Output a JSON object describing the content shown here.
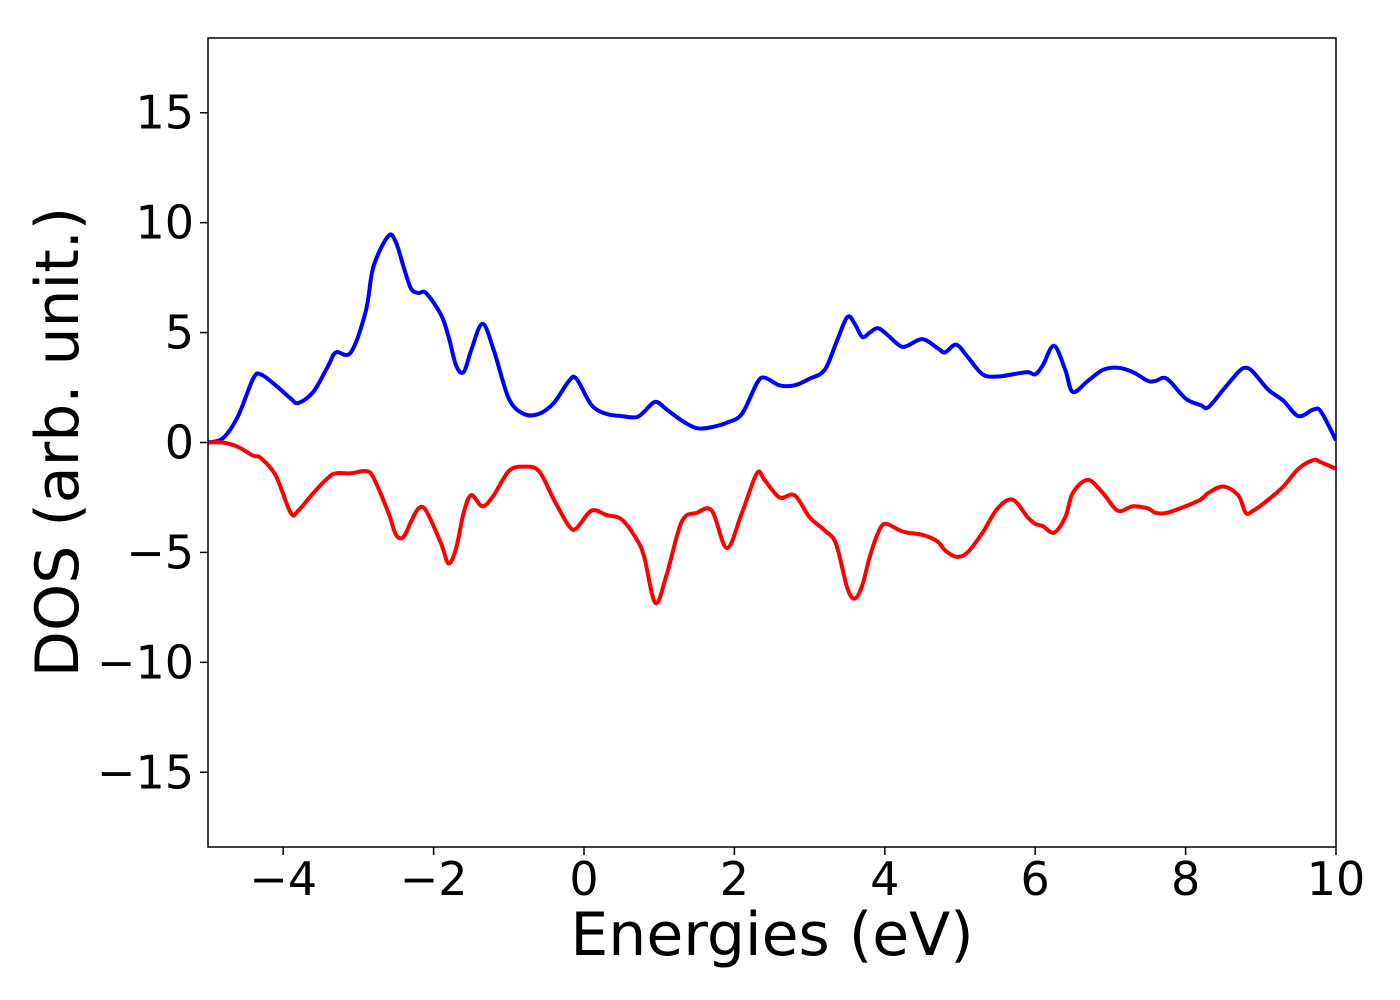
{
  "chart_data": {
    "type": "line",
    "xlabel": "Energies (eV)",
    "ylabel": "DOS (arb. unit.)",
    "xlim": [
      -5,
      10
    ],
    "ylim": [
      -18.4,
      18.4
    ],
    "xticks": [
      {
        "value": -4,
        "label": "−4"
      },
      {
        "value": -2,
        "label": "−2"
      },
      0,
      2,
      4,
      6,
      8,
      10
    ],
    "yticks": [
      {
        "value": -15,
        "label": "−15"
      },
      {
        "value": -10,
        "label": "−10"
      },
      {
        "value": -5,
        "label": "−5"
      },
      0,
      5,
      10,
      15
    ],
    "grid": false,
    "x": [
      -5,
      -4.8,
      -4.6,
      -4.4,
      -4.3,
      -4.1,
      -3.9,
      -3.8,
      -3.6,
      -3.4,
      -3.3,
      -3.1,
      -2.9,
      -2.8,
      -2.6,
      -2.5,
      -2.4,
      -2.3,
      -2.2,
      -2.1,
      -1.9,
      -1.8,
      -1.7,
      -1.6,
      -1.5,
      -1.35,
      -1.2,
      -1.0,
      -0.8,
      -0.6,
      -0.4,
      -0.2,
      -0.1,
      0.1,
      0.3,
      0.5,
      0.7,
      0.8,
      0.95,
      1.1,
      1.3,
      1.5,
      1.7,
      1.9,
      2.1,
      2.3,
      2.4,
      2.6,
      2.8,
      3.0,
      3.2,
      3.35,
      3.5,
      3.6,
      3.7,
      3.8,
      3.9,
      4.0,
      4.2,
      4.3,
      4.5,
      4.7,
      4.8,
      4.95,
      5.1,
      5.3,
      5.5,
      5.7,
      5.9,
      6.0,
      6.1,
      6.25,
      6.4,
      6.5,
      6.7,
      6.9,
      7.1,
      7.3,
      7.5,
      7.6,
      7.75,
      8.0,
      8.2,
      8.3,
      8.5,
      8.7,
      8.8,
      8.9,
      9.1,
      9.3,
      9.5,
      9.7,
      9.8,
      10.0
    ],
    "series": [
      {
        "color": "#0000ff",
        "values": [
          0,
          0.2,
          1.2,
          2.9,
          3.1,
          2.6,
          2.0,
          1.8,
          2.3,
          3.5,
          4.1,
          4.1,
          6.0,
          8.0,
          9.4,
          9.1,
          8.0,
          7.0,
          6.8,
          6.8,
          5.8,
          4.8,
          3.5,
          3.2,
          4.2,
          5.4,
          4.2,
          2.0,
          1.3,
          1.3,
          1.8,
          2.8,
          2.9,
          1.7,
          1.3,
          1.2,
          1.15,
          1.4,
          1.85,
          1.5,
          1.0,
          0.65,
          0.7,
          0.9,
          1.3,
          2.7,
          2.95,
          2.6,
          2.6,
          2.9,
          3.3,
          4.5,
          5.7,
          5.4,
          4.8,
          5.0,
          5.2,
          5.0,
          4.4,
          4.4,
          4.7,
          4.3,
          4.1,
          4.45,
          3.9,
          3.1,
          3.0,
          3.1,
          3.2,
          3.1,
          3.5,
          4.4,
          3.3,
          2.3,
          2.8,
          3.3,
          3.4,
          3.2,
          2.8,
          2.8,
          2.9,
          2.0,
          1.7,
          1.6,
          2.4,
          3.2,
          3.4,
          3.2,
          2.4,
          1.9,
          1.2,
          1.5,
          1.4,
          0.1
        ]
      },
      {
        "color": "#ff0000",
        "values": [
          0,
          0,
          -0.2,
          -0.6,
          -0.7,
          -1.5,
          -3.2,
          -3.1,
          -2.3,
          -1.6,
          -1.4,
          -1.4,
          -1.3,
          -1.6,
          -3.2,
          -4.2,
          -4.3,
          -3.6,
          -3.0,
          -3.1,
          -4.6,
          -5.5,
          -4.8,
          -3.2,
          -2.4,
          -2.9,
          -2.4,
          -1.3,
          -1.1,
          -1.3,
          -2.6,
          -3.8,
          -3.9,
          -3.1,
          -3.3,
          -3.5,
          -4.4,
          -5.2,
          -7.3,
          -6.0,
          -3.6,
          -3.2,
          -3.1,
          -4.8,
          -3.2,
          -1.4,
          -1.7,
          -2.5,
          -2.4,
          -3.4,
          -4.0,
          -4.6,
          -6.6,
          -7.1,
          -6.5,
          -5.2,
          -4.2,
          -3.7,
          -4.0,
          -4.1,
          -4.2,
          -4.5,
          -4.9,
          -5.2,
          -5.0,
          -4.1,
          -3.0,
          -2.6,
          -3.4,
          -3.7,
          -3.8,
          -4.1,
          -3.4,
          -2.3,
          -1.7,
          -2.3,
          -3.1,
          -2.9,
          -3.0,
          -3.2,
          -3.2,
          -2.9,
          -2.6,
          -2.3,
          -2.0,
          -2.4,
          -3.2,
          -3.1,
          -2.6,
          -2.0,
          -1.2,
          -0.8,
          -0.9,
          -1.2
        ]
      }
    ]
  }
}
